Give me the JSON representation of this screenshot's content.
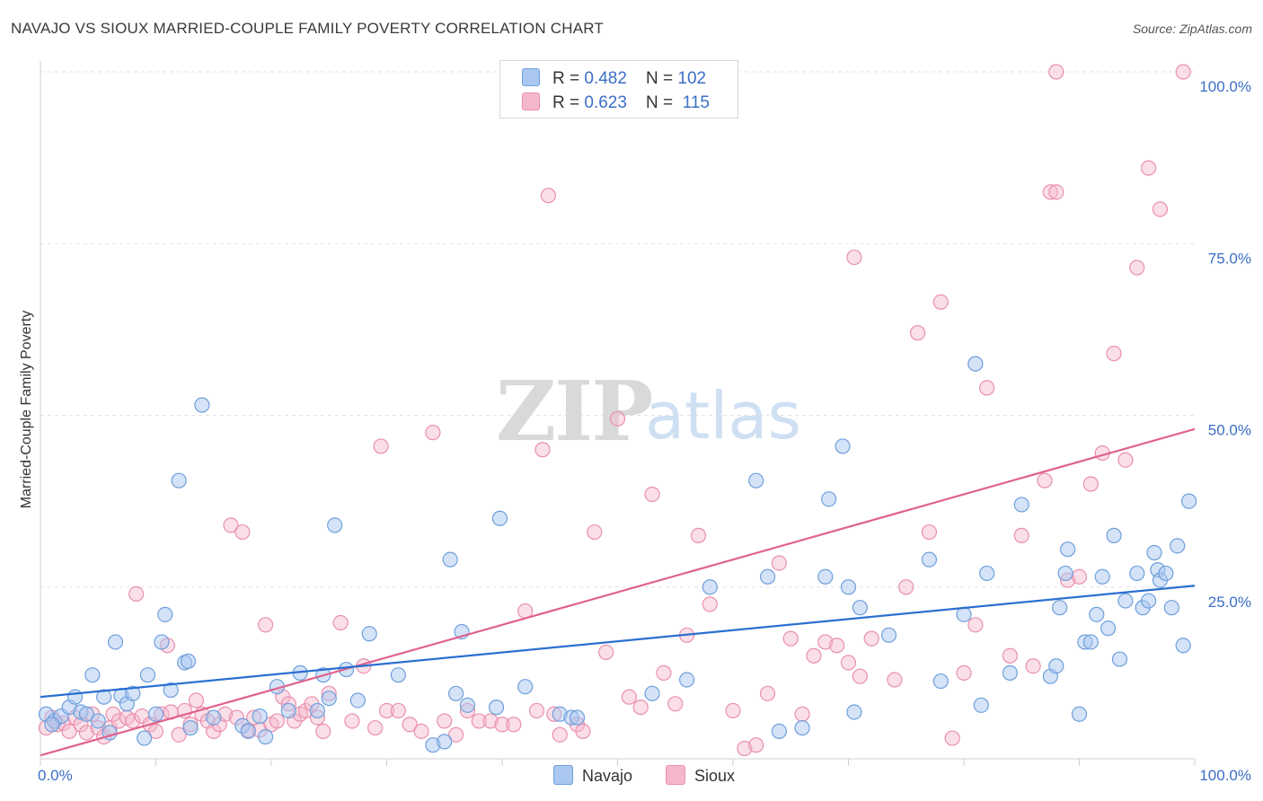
{
  "header": {
    "title": "NAVAJO VS SIOUX MARRIED-COUPLE FAMILY POVERTY CORRELATION CHART",
    "source": "Source: ZipAtlas.com"
  },
  "legend": {
    "rows": [
      {
        "r_label": "R = ",
        "r_value": "0.482",
        "n_label": "N = ",
        "n_value": "102"
      },
      {
        "r_label": "R = ",
        "r_value": "0.623",
        "n_label": "N = ",
        "n_value": "115"
      }
    ]
  },
  "bottom_legend": {
    "navajo": "Navajo",
    "sioux": "Sioux"
  },
  "colors": {
    "navajo_fill": "#a9c7ef",
    "navajo_stroke": "#6e9fdc",
    "navajo_line": "#2b6fd1",
    "sioux_fill": "#f5b8cb",
    "sioux_stroke": "#ea8fae",
    "sioux_line": "#e0628d",
    "grid": "#e2e2e2",
    "axis_label": "#3b6fc6"
  },
  "watermark": {
    "zip": "ZIP",
    "atlas": "atlas"
  },
  "chart_data": {
    "type": "scatter",
    "title": "NAVAJO VS SIOUX MARRIED-COUPLE FAMILY POVERTY CORRELATION CHART",
    "xlabel": "",
    "ylabel": "Married-Couple Family Poverty",
    "xlim": [
      0,
      100
    ],
    "ylim": [
      0,
      100
    ],
    "x_tick_labels": [
      "0.0%",
      "100.0%"
    ],
    "y_tick_labels": [
      "25.0%",
      "50.0%",
      "75.0%",
      "100.0%"
    ],
    "y_ticks": [
      25,
      50,
      75,
      100
    ],
    "grid": true,
    "series": [
      {
        "name": "Navajo",
        "r": 0.482,
        "n": 102,
        "trend": {
          "x0": 0,
          "y0": 9.0,
          "x1": 100,
          "y1": 25.2
        },
        "points": [
          [
            0.5,
            6.5
          ],
          [
            1.2,
            5.5
          ],
          [
            1.8,
            6.2
          ],
          [
            2.5,
            7.5
          ],
          [
            3,
            9
          ],
          [
            3.5,
            6.8
          ],
          [
            4,
            6.5
          ],
          [
            4.5,
            12.2
          ],
          [
            5,
            5.5
          ],
          [
            5.5,
            9
          ],
          [
            6,
            3.8
          ],
          [
            6.5,
            17
          ],
          [
            7,
            9.2
          ],
          [
            7.5,
            8
          ],
          [
            8,
            9.5
          ],
          [
            9,
            3
          ],
          [
            9.3,
            12.2
          ],
          [
            10,
            6.5
          ],
          [
            10.5,
            17
          ],
          [
            10.8,
            21
          ],
          [
            11.3,
            10
          ],
          [
            12,
            40.5
          ],
          [
            12.5,
            14
          ],
          [
            12.8,
            14.2
          ],
          [
            13,
            4.5
          ],
          [
            14,
            51.5
          ],
          [
            15,
            6
          ],
          [
            17.5,
            4.8
          ],
          [
            18,
            4
          ],
          [
            19,
            6.2
          ],
          [
            19.5,
            3.2
          ],
          [
            20.5,
            10.5
          ],
          [
            21.5,
            7
          ],
          [
            22.5,
            12.5
          ],
          [
            24,
            7
          ],
          [
            24.5,
            12.2
          ],
          [
            25,
            8.8
          ],
          [
            25.5,
            34
          ],
          [
            26.5,
            13
          ],
          [
            27.5,
            8.5
          ],
          [
            28.5,
            18.2
          ],
          [
            31,
            12.2
          ],
          [
            34,
            2
          ],
          [
            35,
            2.5
          ],
          [
            35.5,
            29
          ],
          [
            36,
            9.5
          ],
          [
            36.5,
            18.5
          ],
          [
            37,
            7.8
          ],
          [
            39.5,
            7.5
          ],
          [
            39.8,
            35
          ],
          [
            42,
            10.5
          ],
          [
            45,
            6.5
          ],
          [
            46,
            6
          ],
          [
            46.5,
            6
          ],
          [
            53,
            9.5
          ],
          [
            56,
            11.5
          ],
          [
            58,
            25
          ],
          [
            62,
            40.5
          ],
          [
            63,
            26.5
          ],
          [
            64,
            4
          ],
          [
            66,
            4.5
          ],
          [
            68,
            26.5
          ],
          [
            68.3,
            37.8
          ],
          [
            69.5,
            45.5
          ],
          [
            70,
            25
          ],
          [
            70.5,
            6.8
          ],
          [
            71,
            22
          ],
          [
            73.5,
            18
          ],
          [
            77,
            29
          ],
          [
            78,
            11.3
          ],
          [
            80,
            21
          ],
          [
            81,
            57.5
          ],
          [
            81.5,
            7.8
          ],
          [
            82,
            27
          ],
          [
            84,
            12.5
          ],
          [
            85,
            37
          ],
          [
            87.5,
            12
          ],
          [
            88,
            13.5
          ],
          [
            88.3,
            22
          ],
          [
            88.8,
            27
          ],
          [
            89,
            30.5
          ],
          [
            90,
            6.5
          ],
          [
            90.5,
            17
          ],
          [
            91,
            17
          ],
          [
            91.5,
            21
          ],
          [
            92,
            26.5
          ],
          [
            92.5,
            19
          ],
          [
            93,
            32.5
          ],
          [
            93.5,
            14.5
          ],
          [
            94,
            23
          ],
          [
            95,
            27
          ],
          [
            95.5,
            22
          ],
          [
            96,
            23
          ],
          [
            96.5,
            30
          ],
          [
            96.8,
            27.5
          ],
          [
            97,
            26
          ],
          [
            97.5,
            27
          ],
          [
            98,
            22
          ],
          [
            98.5,
            31
          ],
          [
            99,
            16.5
          ],
          [
            99.5,
            37.5
          ],
          [
            1,
            5
          ]
        ]
      },
      {
        "name": "Sioux",
        "r": 0.623,
        "n": 115,
        "trend": {
          "x0": 0,
          "y0": 0.5,
          "x1": 100,
          "y1": 48.0
        },
        "points": [
          [
            0.5,
            4.5
          ],
          [
            1,
            6
          ],
          [
            1.5,
            5
          ],
          [
            2,
            5.2
          ],
          [
            2.5,
            4
          ],
          [
            3,
            6
          ],
          [
            3.5,
            5
          ],
          [
            4,
            3.8
          ],
          [
            4.5,
            6.5
          ],
          [
            5,
            4.5
          ],
          [
            5.5,
            3.2
          ],
          [
            6,
            4.5
          ],
          [
            6.3,
            6.5
          ],
          [
            6.8,
            5.5
          ],
          [
            7.5,
            6
          ],
          [
            8,
            5.5
          ],
          [
            8.3,
            24
          ],
          [
            8.8,
            6.2
          ],
          [
            9.5,
            5
          ],
          [
            10,
            4
          ],
          [
            10.5,
            6.5
          ],
          [
            11,
            16.5
          ],
          [
            11.3,
            6.8
          ],
          [
            12,
            3.5
          ],
          [
            12.5,
            7
          ],
          [
            13,
            5
          ],
          [
            13.5,
            8.5
          ],
          [
            14,
            6.5
          ],
          [
            14.5,
            5.5
          ],
          [
            15,
            4
          ],
          [
            15.5,
            5
          ],
          [
            16,
            6.5
          ],
          [
            16.5,
            34
          ],
          [
            17,
            6
          ],
          [
            17.5,
            33
          ],
          [
            18,
            4.2
          ],
          [
            18.5,
            6
          ],
          [
            19,
            4.2
          ],
          [
            19.5,
            19.5
          ],
          [
            20,
            5
          ],
          [
            20.5,
            5.5
          ],
          [
            21,
            9
          ],
          [
            21.5,
            8
          ],
          [
            22,
            5.5
          ],
          [
            22.5,
            6.5
          ],
          [
            23,
            7
          ],
          [
            23.5,
            8
          ],
          [
            24,
            6
          ],
          [
            24.5,
            4
          ],
          [
            25,
            9.5
          ],
          [
            26,
            19.8
          ],
          [
            27,
            5.5
          ],
          [
            28,
            13.5
          ],
          [
            29,
            4.5
          ],
          [
            29.5,
            45.5
          ],
          [
            30,
            7
          ],
          [
            31,
            7
          ],
          [
            32,
            5
          ],
          [
            33,
            4
          ],
          [
            34,
            47.5
          ],
          [
            35,
            5.5
          ],
          [
            36,
            3.5
          ],
          [
            37,
            7
          ],
          [
            38,
            5.5
          ],
          [
            39,
            5.5
          ],
          [
            40,
            5
          ],
          [
            41,
            5
          ],
          [
            42,
            21.5
          ],
          [
            43,
            7
          ],
          [
            43.5,
            45
          ],
          [
            44,
            82
          ],
          [
            44.5,
            6.5
          ],
          [
            45,
            3.5
          ],
          [
            46.5,
            5
          ],
          [
            47,
            4
          ],
          [
            48,
            33
          ],
          [
            49,
            15.5
          ],
          [
            50,
            49.5
          ],
          [
            51,
            9
          ],
          [
            52,
            7.5
          ],
          [
            53,
            38.5
          ],
          [
            54,
            12.5
          ],
          [
            55,
            8
          ],
          [
            56,
            18
          ],
          [
            57,
            32.5
          ],
          [
            58,
            22.5
          ],
          [
            60,
            7
          ],
          [
            61,
            1.5
          ],
          [
            62,
            2
          ],
          [
            63,
            9.5
          ],
          [
            64,
            28.5
          ],
          [
            65,
            17.5
          ],
          [
            66,
            6.5
          ],
          [
            67,
            15
          ],
          [
            68,
            17
          ],
          [
            69,
            16.5
          ],
          [
            70,
            14
          ],
          [
            70.5,
            73
          ],
          [
            71,
            12
          ],
          [
            72,
            17.5
          ],
          [
            74,
            11.5
          ],
          [
            75,
            25
          ],
          [
            76,
            62
          ],
          [
            77,
            33
          ],
          [
            78,
            66.5
          ],
          [
            79,
            3
          ],
          [
            80,
            12.5
          ],
          [
            81,
            19.5
          ],
          [
            82,
            54
          ],
          [
            84,
            15
          ],
          [
            85,
            32.5
          ],
          [
            86,
            13.5
          ],
          [
            87,
            40.5
          ],
          [
            87.5,
            82.5
          ],
          [
            88,
            82.5
          ],
          [
            89,
            26
          ],
          [
            90,
            26.5
          ],
          [
            91,
            40
          ],
          [
            92,
            44.5
          ],
          [
            93,
            59
          ],
          [
            94,
            43.5
          ],
          [
            95,
            71.5
          ],
          [
            96,
            86
          ],
          [
            97,
            80
          ],
          [
            99,
            100
          ],
          [
            88,
            100
          ]
        ]
      }
    ]
  }
}
